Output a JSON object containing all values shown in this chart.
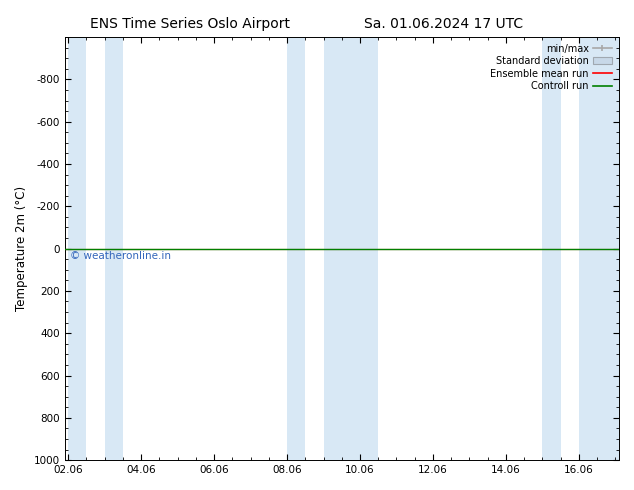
{
  "title_left": "ENS Time Series Oslo Airport",
  "title_right": "Sa. 01.06.2024 17 UTC",
  "ylabel": "Temperature 2m (°C)",
  "ylim_top": -1000,
  "ylim_bottom": 1000,
  "yticks": [
    -800,
    -600,
    -400,
    -200,
    0,
    200,
    400,
    600,
    800,
    1000
  ],
  "xtick_labels": [
    "02.06",
    "04.06",
    "06.06",
    "08.06",
    "10.06",
    "12.06",
    "14.06",
    "16.06"
  ],
  "xtick_positions": [
    0,
    2,
    4,
    6,
    8,
    10,
    12,
    14
  ],
  "xlim": [
    -0.1,
    15.1
  ],
  "blue_bands": [
    [
      0.0,
      0.5
    ],
    [
      1.0,
      1.5
    ],
    [
      6.0,
      6.5
    ],
    [
      7.0,
      8.5
    ],
    [
      13.0,
      13.5
    ],
    [
      14.0,
      15.1
    ]
  ],
  "control_run_y": 0.0,
  "ensemble_mean_y": 0.0,
  "legend_labels": [
    "min/max",
    "Standard deviation",
    "Ensemble mean run",
    "Controll run"
  ],
  "legend_colors_line": [
    "#a0a0a0",
    "#c0c8d0",
    "#ff0000",
    "#008000"
  ],
  "background_color": "#ffffff",
  "band_color": "#d8e8f5",
  "watermark": "© weatheronline.in",
  "watermark_color": "#3366bb",
  "tick_font_size": 7.5,
  "label_font_size": 8.5,
  "title_font_size": 10
}
